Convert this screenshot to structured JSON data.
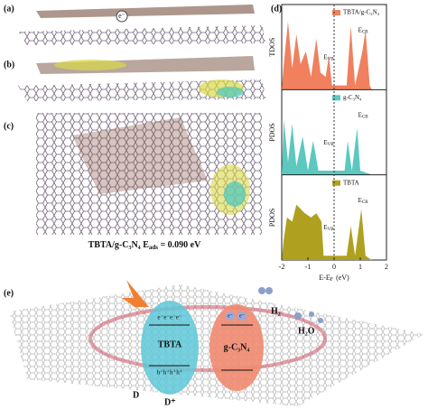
{
  "panel_labels": [
    "(a)",
    "(b)",
    "(c)",
    "(d)",
    "(e)"
  ],
  "panel_a": {
    "electron": "e⁻"
  },
  "panel_c": {
    "material": "TBTA/g-C₃N₄",
    "energy_symbol": "E",
    "energy_subscript": "ads",
    "energy_value": "= 0.090 eV"
  },
  "panel_d": {
    "xlim": [
      -2,
      2
    ],
    "xticks": [
      -2,
      -1,
      0,
      1,
      2
    ],
    "xlabel": "E-E",
    "xlabel_subscript": "F",
    "xlabel_unit": "(eV)",
    "subpanels": [
      {
        "ylabel": "TDOS",
        "legend": "TBTA/g-C₃N₄",
        "color": "#f0805e",
        "cb": "E",
        "cb_sub": "CB",
        "vb": "E",
        "vb_sub": "VB"
      },
      {
        "ylabel": "PDOS",
        "legend": "g-C₃N₄",
        "color": "#5cc8c0",
        "cb": "E",
        "cb_sub": "CB",
        "vb": "E",
        "vb_sub": "VB"
      },
      {
        "ylabel": "PDOS",
        "legend": "TBTA",
        "color": "#b0a020",
        "cb": "E",
        "cb_sub": "CB",
        "vb": "E",
        "vb_sub": "VB"
      }
    ]
  },
  "panel_e": {
    "tbta": "TBTA",
    "gcn": "g-C₃N₄",
    "h2": "H₂",
    "h2o": "H₂O",
    "donor": "D",
    "donor_plus": "D⁺",
    "electrons": "e⁻e⁻e⁻e⁻",
    "holes": "h⁺h⁺h⁺h⁺",
    "e1": "e⁻",
    "e2": "e⁻"
  }
}
